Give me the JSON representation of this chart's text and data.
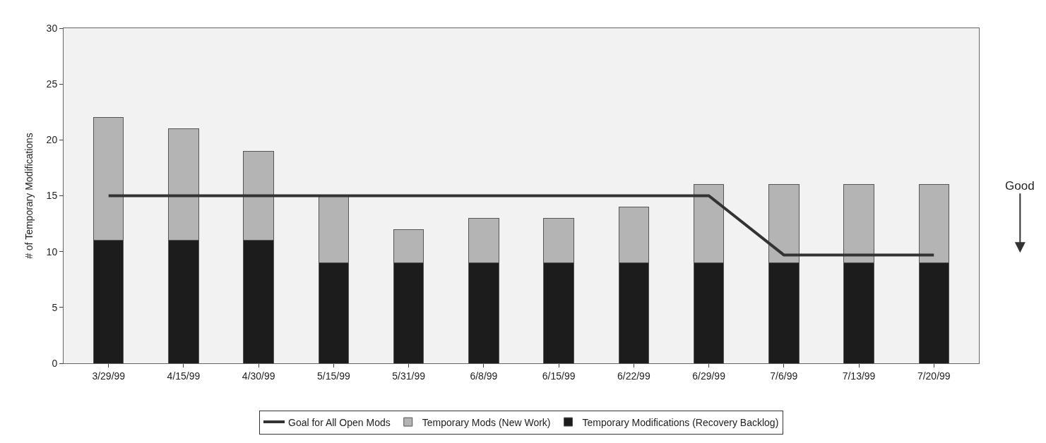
{
  "chart_data": {
    "type": "bar",
    "stacked": true,
    "ylabel": "# of Temporary Modifications",
    "categories": [
      "3/29/99",
      "4/15/99",
      "4/30/99",
      "5/15/99",
      "5/31/99",
      "6/8/99",
      "6/15/99",
      "6/22/99",
      "6/29/99",
      "7/6/99",
      "7/13/99",
      "7/20/99"
    ],
    "series": [
      {
        "name": "Temporary Modifications (Recovery Backlog)",
        "color": "#1c1c1c",
        "values": [
          11,
          11,
          11,
          9,
          9,
          9,
          9,
          9,
          9,
          9,
          9,
          9
        ]
      },
      {
        "name": "Temporary Mods (New Work)",
        "color": "#b4b4b4",
        "values": [
          11,
          10,
          8,
          6,
          3,
          4,
          4,
          5,
          7,
          7,
          7,
          7
        ]
      },
      {
        "name": "Goal for All Open Mods",
        "type": "line",
        "color": "#333333",
        "values": [
          15,
          15,
          15,
          15,
          15,
          15,
          15,
          15,
          15,
          9.7,
          9.7,
          9.7
        ]
      }
    ],
    "ylim": [
      0,
      30
    ],
    "yticks": [
      0,
      5,
      10,
      15,
      20,
      25,
      30
    ],
    "grid": false,
    "legend": "bottom",
    "marker": "none",
    "annotations": [
      "Good"
    ]
  }
}
